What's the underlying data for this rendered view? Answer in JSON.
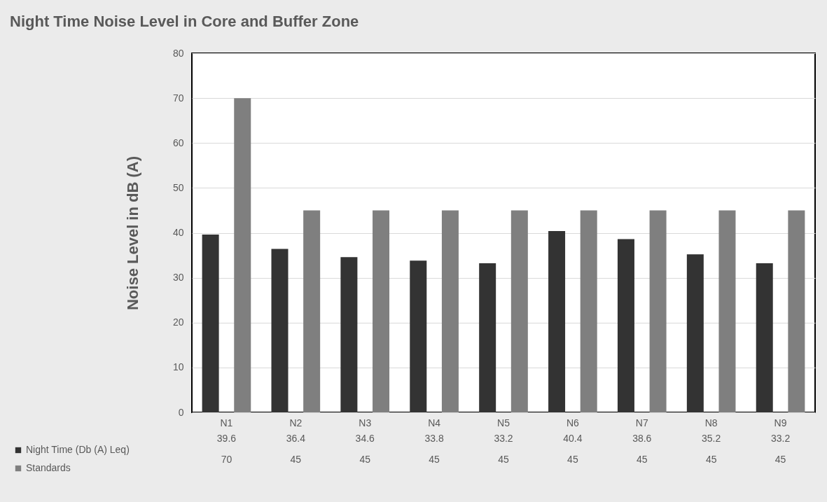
{
  "chart_data": {
    "type": "bar",
    "title": "Night Time Noise Level in Core and Buffer Zone",
    "ylabel": "Noise Level in dB (A)",
    "categories": [
      "N1",
      "N2",
      "N3",
      "N4",
      "N5",
      "N6",
      "N7",
      "N8",
      "N9"
    ],
    "series": [
      {
        "name": "Night Time (Db (A) Leq)",
        "color": "#333333",
        "values": [
          39.6,
          36.4,
          34.6,
          33.8,
          33.2,
          40.4,
          38.6,
          35.2,
          33.2
        ]
      },
      {
        "name": "Standards",
        "color": "#7f7f7f",
        "values": [
          70,
          45,
          45,
          45,
          45,
          45,
          45,
          45,
          45
        ]
      }
    ],
    "ylim": [
      0,
      80
    ],
    "yticks": [
      0,
      10,
      20,
      30,
      40,
      50,
      60,
      70,
      80
    ],
    "grid": "y",
    "legend": "bottom left",
    "data_labels": true
  }
}
